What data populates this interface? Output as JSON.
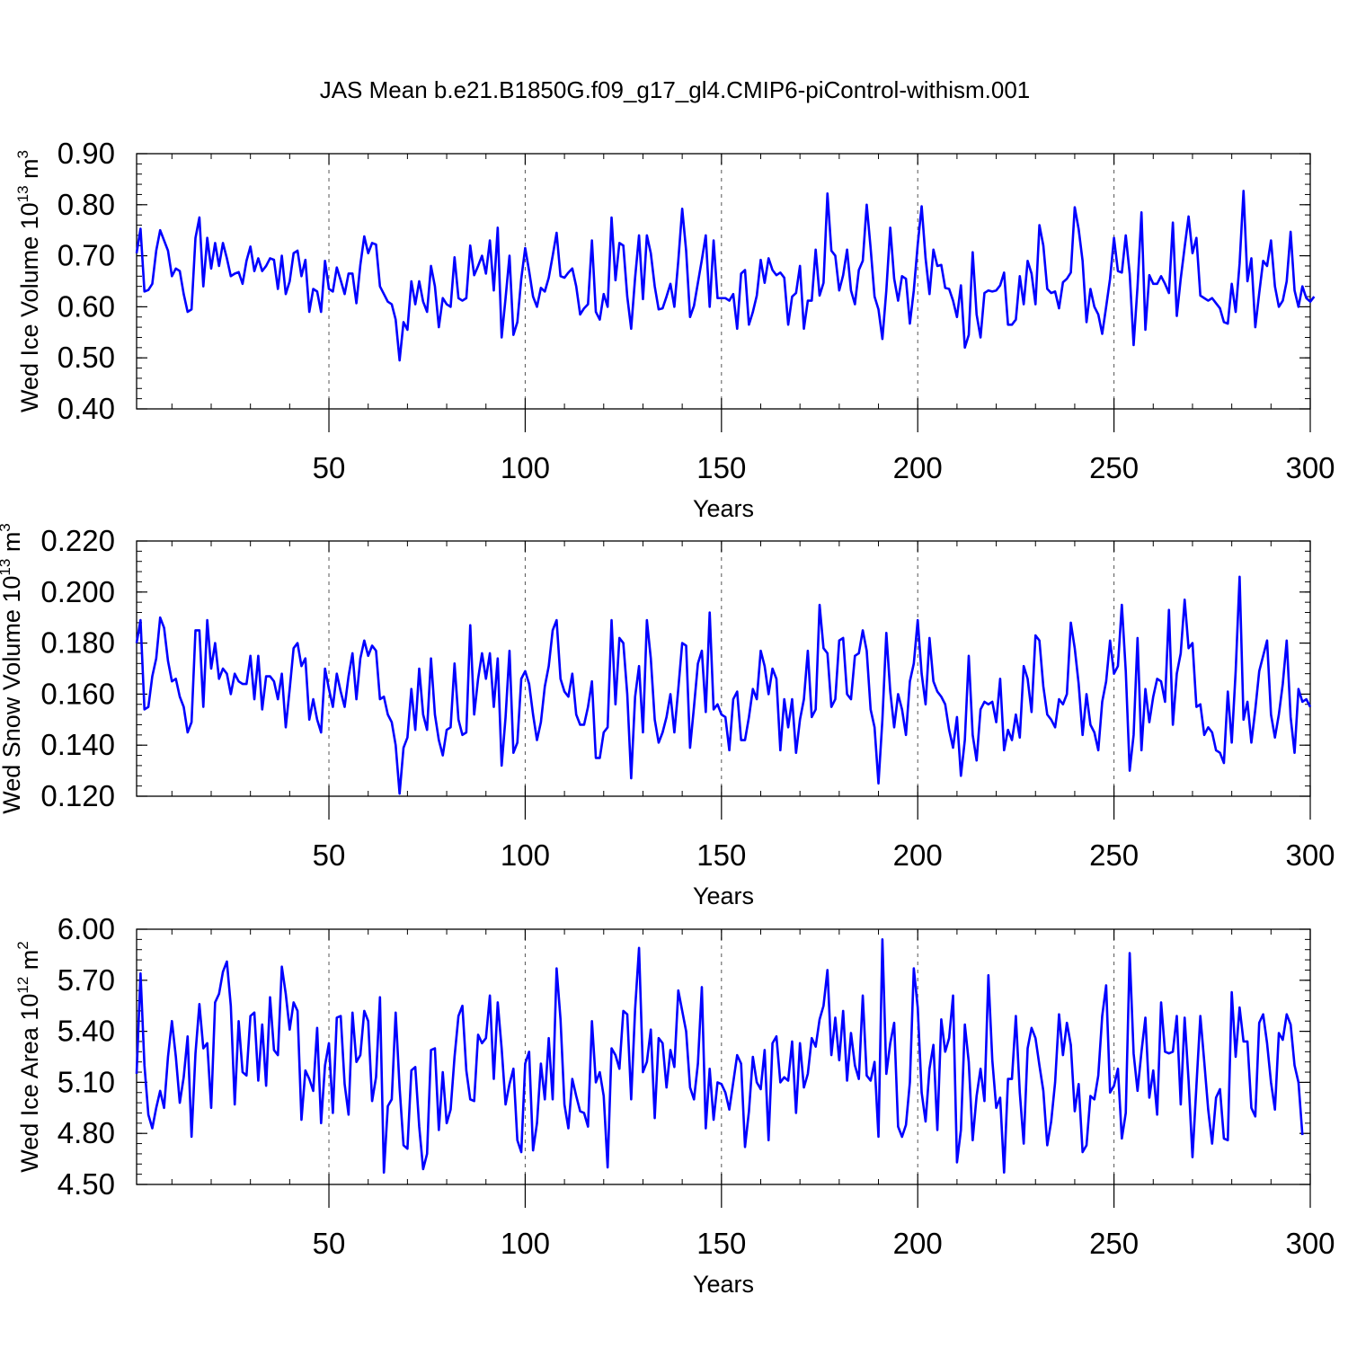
{
  "title": "JAS Mean b.e21.B1850G.f09_g17_gl4.CMIP6-piControl-withism.001",
  "colors": {
    "line": "#0000ff",
    "axis": "#000000",
    "grid": "#555555"
  },
  "chart_data": [
    {
      "type": "line",
      "xlabel": "Years",
      "ylabel_text": "Wed Ice Volume 10",
      "ylabel_exp": "13",
      "ylabel_unit": "m",
      "ylabel_unit_exp": "3",
      "xlim": [
        1,
        300
      ],
      "ylim": [
        0.4,
        0.9
      ],
      "xticks": [
        50,
        100,
        150,
        200,
        250,
        300
      ],
      "yticks": [
        0.4,
        0.5,
        0.6,
        0.7,
        0.8,
        0.9
      ],
      "ytick_labels": [
        "0.40",
        "0.50",
        "0.60",
        "0.70",
        "0.80",
        "0.90"
      ],
      "grid": "vertical dashed at x ticks",
      "series": [
        {
          "x_start": 1,
          "values": [
            0.705,
            0.753,
            0.63,
            0.633,
            0.645,
            0.71,
            0.75,
            0.73,
            0.71,
            0.66,
            0.675,
            0.67,
            0.625,
            0.59,
            0.595,
            0.735,
            0.775,
            0.64,
            0.735,
            0.675,
            0.725,
            0.68,
            0.725,
            0.695,
            0.66,
            0.665,
            0.668,
            0.645,
            0.69,
            0.718,
            0.67,
            0.695,
            0.67,
            0.68,
            0.695,
            0.692,
            0.635,
            0.7,
            0.625,
            0.65,
            0.705,
            0.71,
            0.66,
            0.692,
            0.59,
            0.635,
            0.63,
            0.59,
            0.69,
            0.635,
            0.63,
            0.677,
            0.652,
            0.625,
            0.665,
            0.665,
            0.607,
            0.682,
            0.738,
            0.705,
            0.725,
            0.722,
            0.64,
            0.625,
            0.61,
            0.605,
            0.575,
            0.495,
            0.57,
            0.555,
            0.65,
            0.605,
            0.65,
            0.61,
            0.59,
            0.68,
            0.64,
            0.56,
            0.617,
            0.605,
            0.6,
            0.697,
            0.617,
            0.612,
            0.617,
            0.72,
            0.662,
            0.68,
            0.7,
            0.665,
            0.73,
            0.632,
            0.755,
            0.54,
            0.617,
            0.7,
            0.545,
            0.57,
            0.655,
            0.715,
            0.67,
            0.62,
            0.6,
            0.637,
            0.63,
            0.657,
            0.7,
            0.745,
            0.66,
            0.657,
            0.667,
            0.675,
            0.64,
            0.585,
            0.597,
            0.605,
            0.73,
            0.59,
            0.575,
            0.625,
            0.6,
            0.775,
            0.652,
            0.725,
            0.72,
            0.62,
            0.557,
            0.657,
            0.74,
            0.615,
            0.74,
            0.705,
            0.64,
            0.595,
            0.597,
            0.62,
            0.645,
            0.6,
            0.69,
            0.792,
            0.71,
            0.58,
            0.602,
            0.647,
            0.692,
            0.74,
            0.6,
            0.73,
            0.617,
            0.617,
            0.617,
            0.612,
            0.625,
            0.557,
            0.665,
            0.672,
            0.565,
            0.59,
            0.622,
            0.692,
            0.647,
            0.695,
            0.672,
            0.662,
            0.667,
            0.657,
            0.565,
            0.62,
            0.627,
            0.68,
            0.557,
            0.612,
            0.612,
            0.712,
            0.622,
            0.647,
            0.822,
            0.71,
            0.7,
            0.632,
            0.662,
            0.712,
            0.632,
            0.605,
            0.672,
            0.69,
            0.8,
            0.715,
            0.62,
            0.595,
            0.537,
            0.632,
            0.755,
            0.655,
            0.612,
            0.66,
            0.655,
            0.567,
            0.632,
            0.722,
            0.797,
            0.695,
            0.625,
            0.712,
            0.68,
            0.682,
            0.637,
            0.635,
            0.612,
            0.58,
            0.642,
            0.52,
            0.545,
            0.707,
            0.585,
            0.54,
            0.627,
            0.632,
            0.63,
            0.632,
            0.642,
            0.667,
            0.565,
            0.565,
            0.575,
            0.66,
            0.605,
            0.69,
            0.665,
            0.605,
            0.76,
            0.72,
            0.635,
            0.627,
            0.63,
            0.597,
            0.648,
            0.655,
            0.667,
            0.795,
            0.752,
            0.69,
            0.57,
            0.635,
            0.6,
            0.585,
            0.547,
            0.6,
            0.655,
            0.735,
            0.67,
            0.667,
            0.74,
            0.665,
            0.525,
            0.64,
            0.785,
            0.555,
            0.662,
            0.645,
            0.645,
            0.66,
            0.645,
            0.627,
            0.765,
            0.582,
            0.655,
            0.717,
            0.777,
            0.705,
            0.735,
            0.622,
            0.617,
            0.612,
            0.617,
            0.607,
            0.597,
            0.57,
            0.567,
            0.645,
            0.59,
            0.685,
            0.827,
            0.65,
            0.695,
            0.56,
            0.627,
            0.69,
            0.68,
            0.73,
            0.64,
            0.6,
            0.612,
            0.65,
            0.747,
            0.632,
            0.6,
            0.64,
            0.617,
            0.61,
            0.62
          ]
        }
      ]
    },
    {
      "type": "line",
      "xlabel": "Years",
      "ylabel_text": "Wed Snow Volume 10",
      "ylabel_exp": "13",
      "ylabel_unit": "m",
      "ylabel_unit_exp": "3",
      "xlim": [
        1,
        300
      ],
      "ylim": [
        0.12,
        0.22
      ],
      "xticks": [
        50,
        100,
        150,
        200,
        250,
        300
      ],
      "yticks": [
        0.12,
        0.14,
        0.16,
        0.18,
        0.2,
        0.22
      ],
      "ytick_labels": [
        "0.120",
        "0.140",
        "0.160",
        "0.180",
        "0.200",
        "0.220"
      ],
      "grid": "vertical dashed at x ticks",
      "series": [
        {
          "x_start": 1,
          "values": [
            0.18,
            0.189,
            0.154,
            0.155,
            0.167,
            0.174,
            0.19,
            0.186,
            0.173,
            0.165,
            0.166,
            0.159,
            0.155,
            0.145,
            0.149,
            0.185,
            0.185,
            0.155,
            0.189,
            0.17,
            0.18,
            0.166,
            0.17,
            0.168,
            0.16,
            0.168,
            0.165,
            0.164,
            0.164,
            0.175,
            0.158,
            0.175,
            0.154,
            0.167,
            0.167,
            0.165,
            0.158,
            0.168,
            0.147,
            0.162,
            0.178,
            0.18,
            0.171,
            0.174,
            0.15,
            0.158,
            0.15,
            0.145,
            0.17,
            0.162,
            0.155,
            0.168,
            0.161,
            0.155,
            0.167,
            0.176,
            0.158,
            0.174,
            0.181,
            0.175,
            0.179,
            0.177,
            0.158,
            0.159,
            0.152,
            0.149,
            0.14,
            0.121,
            0.139,
            0.143,
            0.162,
            0.146,
            0.17,
            0.152,
            0.146,
            0.174,
            0.152,
            0.142,
            0.136,
            0.146,
            0.147,
            0.172,
            0.15,
            0.144,
            0.145,
            0.187,
            0.152,
            0.166,
            0.176,
            0.166,
            0.176,
            0.155,
            0.174,
            0.132,
            0.151,
            0.177,
            0.137,
            0.141,
            0.166,
            0.169,
            0.164,
            0.152,
            0.142,
            0.149,
            0.163,
            0.171,
            0.185,
            0.189,
            0.166,
            0.161,
            0.159,
            0.168,
            0.152,
            0.148,
            0.148,
            0.155,
            0.165,
            0.135,
            0.135,
            0.145,
            0.147,
            0.189,
            0.156,
            0.182,
            0.18,
            0.16,
            0.127,
            0.159,
            0.171,
            0.145,
            0.189,
            0.174,
            0.15,
            0.141,
            0.145,
            0.151,
            0.16,
            0.145,
            0.162,
            0.18,
            0.179,
            0.139,
            0.155,
            0.172,
            0.177,
            0.153,
            0.192,
            0.154,
            0.156,
            0.152,
            0.151,
            0.138,
            0.158,
            0.161,
            0.142,
            0.142,
            0.151,
            0.162,
            0.158,
            0.177,
            0.171,
            0.16,
            0.17,
            0.166,
            0.138,
            0.158,
            0.147,
            0.158,
            0.137,
            0.15,
            0.158,
            0.177,
            0.151,
            0.154,
            0.195,
            0.178,
            0.176,
            0.155,
            0.158,
            0.181,
            0.182,
            0.16,
            0.158,
            0.175,
            0.176,
            0.185,
            0.177,
            0.154,
            0.147,
            0.125,
            0.15,
            0.184,
            0.161,
            0.147,
            0.16,
            0.154,
            0.144,
            0.165,
            0.172,
            0.189,
            0.168,
            0.156,
            0.182,
            0.165,
            0.161,
            0.159,
            0.156,
            0.146,
            0.139,
            0.151,
            0.128,
            0.142,
            0.175,
            0.144,
            0.134,
            0.154,
            0.157,
            0.156,
            0.157,
            0.149,
            0.166,
            0.138,
            0.146,
            0.142,
            0.152,
            0.143,
            0.171,
            0.166,
            0.153,
            0.183,
            0.181,
            0.163,
            0.152,
            0.15,
            0.147,
            0.158,
            0.156,
            0.16,
            0.188,
            0.178,
            0.164,
            0.144,
            0.16,
            0.148,
            0.145,
            0.138,
            0.157,
            0.165,
            0.181,
            0.168,
            0.171,
            0.195,
            0.169,
            0.13,
            0.144,
            0.182,
            0.138,
            0.162,
            0.149,
            0.159,
            0.166,
            0.165,
            0.157,
            0.193,
            0.148,
            0.168,
            0.176,
            0.197,
            0.178,
            0.18,
            0.155,
            0.156,
            0.144,
            0.147,
            0.145,
            0.138,
            0.137,
            0.133,
            0.161,
            0.141,
            0.169,
            0.206,
            0.15,
            0.157,
            0.141,
            0.154,
            0.169,
            0.175,
            0.181,
            0.152,
            0.143,
            0.152,
            0.164,
            0.181,
            0.151,
            0.137,
            0.162,
            0.157,
            0.158,
            0.155
          ]
        }
      ]
    },
    {
      "type": "line",
      "xlabel": "Years",
      "ylabel_text": "Wed Ice Area 10",
      "ylabel_exp": "12",
      "ylabel_unit": "m",
      "ylabel_unit_exp": "2",
      "xlim": [
        1,
        300
      ],
      "ylim": [
        4.5,
        6.0
      ],
      "xticks": [
        50,
        100,
        150,
        200,
        250,
        300
      ],
      "yticks": [
        4.5,
        4.8,
        5.1,
        5.4,
        5.7,
        6.0
      ],
      "ytick_labels": [
        "4.50",
        "4.80",
        "5.10",
        "5.40",
        "5.70",
        "6.00"
      ],
      "grid": "vertical dashed at x ticks",
      "series": [
        {
          "x_start": 1,
          "values": [
            5.15,
            5.74,
            5.2,
            4.91,
            4.83,
            4.95,
            5.05,
            4.95,
            5.25,
            5.46,
            5.25,
            4.98,
            5.13,
            5.37,
            4.78,
            5.27,
            5.56,
            5.3,
            5.33,
            4.95,
            5.57,
            5.62,
            5.75,
            5.81,
            5.55,
            4.97,
            5.46,
            5.16,
            5.14,
            5.49,
            5.51,
            5.11,
            5.44,
            5.08,
            5.6,
            5.29,
            5.26,
            5.78,
            5.62,
            5.41,
            5.57,
            5.52,
            4.88,
            5.17,
            5.12,
            5.05,
            5.42,
            4.86,
            5.2,
            5.33,
            4.92,
            5.48,
            5.49,
            5.09,
            4.91,
            5.51,
            5.22,
            5.26,
            5.52,
            5.46,
            4.99,
            5.13,
            5.6,
            4.57,
            4.96,
            5.0,
            5.51,
            5.07,
            4.73,
            4.71,
            5.17,
            5.19,
            4.84,
            4.59,
            4.68,
            5.29,
            5.3,
            4.82,
            5.16,
            4.86,
            4.94,
            5.25,
            5.49,
            5.55,
            5.17,
            5.0,
            4.99,
            5.38,
            5.33,
            5.36,
            5.61,
            5.12,
            5.57,
            5.3,
            4.97,
            5.09,
            5.18,
            4.76,
            4.69,
            5.21,
            5.28,
            4.7,
            4.86,
            5.21,
            5.0,
            5.36,
            5.0,
            5.77,
            5.47,
            4.97,
            4.83,
            5.12,
            5.02,
            4.93,
            4.92,
            4.84,
            5.46,
            5.1,
            5.16,
            5.02,
            4.6,
            5.3,
            5.26,
            5.18,
            5.52,
            5.5,
            5.0,
            5.53,
            5.89,
            5.16,
            5.22,
            5.41,
            4.89,
            5.36,
            5.33,
            5.07,
            5.29,
            5.19,
            5.64,
            5.52,
            5.4,
            5.07,
            5.0,
            5.21,
            5.66,
            4.83,
            5.18,
            4.88,
            5.1,
            5.09,
            5.04,
            4.94,
            5.1,
            5.26,
            5.21,
            4.72,
            4.93,
            5.25,
            5.1,
            5.06,
            5.29,
            4.76,
            5.33,
            5.37,
            5.1,
            5.13,
            5.11,
            5.34,
            4.92,
            5.33,
            5.07,
            5.15,
            5.36,
            5.31,
            5.47,
            5.55,
            5.76,
            5.26,
            5.48,
            5.23,
            5.52,
            5.11,
            5.39,
            5.2,
            5.12,
            5.61,
            5.14,
            5.11,
            5.22,
            4.78,
            5.94,
            5.15,
            5.33,
            5.45,
            4.84,
            4.78,
            4.85,
            5.1,
            5.77,
            5.54,
            5.04,
            4.87,
            5.18,
            5.32,
            4.82,
            5.47,
            5.28,
            5.36,
            5.61,
            4.63,
            4.82,
            5.44,
            5.22,
            4.76,
            5.02,
            5.18,
            4.99,
            5.73,
            5.23,
            4.95,
            5.01,
            4.57,
            5.12,
            5.12,
            5.49,
            5.04,
            4.74,
            5.3,
            5.42,
            5.36,
            5.2,
            5.05,
            4.73,
            4.87,
            5.1,
            5.5,
            5.26,
            5.45,
            5.32,
            4.93,
            5.09,
            4.69,
            4.73,
            5.02,
            5.0,
            5.14,
            5.49,
            5.67,
            5.04,
            5.08,
            5.18,
            4.77,
            4.92,
            5.86,
            5.27,
            5.05,
            5.28,
            5.48,
            5.01,
            5.17,
            4.91,
            5.57,
            5.28,
            5.27,
            5.28,
            5.49,
            4.97,
            5.48,
            5.11,
            4.66,
            5.08,
            5.49,
            5.22,
            4.94,
            4.74,
            5.01,
            5.06,
            4.77,
            4.76,
            5.63,
            5.25,
            5.54,
            5.34,
            5.34,
            4.95,
            4.9,
            5.45,
            5.5,
            5.33,
            5.1,
            4.94,
            5.39,
            5.35,
            5.5,
            5.44,
            5.2,
            5.1,
            4.79
          ]
        }
      ]
    }
  ]
}
